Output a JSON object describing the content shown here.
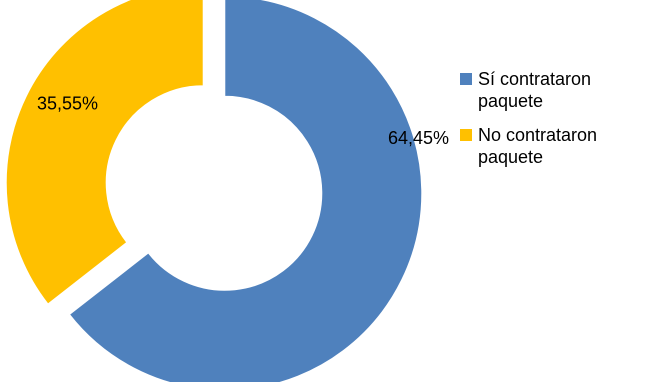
{
  "chart_data": {
    "type": "pie",
    "variant": "donut",
    "slices": [
      {
        "label": "Sí contrataron paquete",
        "value": 64.45,
        "display": "64,45%",
        "color": "#4F81BD"
      },
      {
        "label": "No contrataron paquete",
        "value": 35.55,
        "display": "35,55%",
        "color": "#FFC000"
      }
    ],
    "legend_position": "right",
    "exploded": true
  }
}
